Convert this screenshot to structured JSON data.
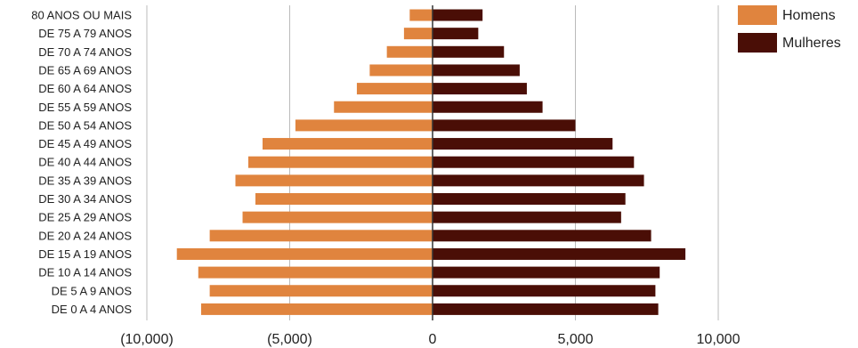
{
  "chart_data": {
    "type": "bar",
    "orientation": "horizontal",
    "layout": "population-pyramid",
    "categories": [
      "80 ANOS OU MAIS",
      "DE 75 A 79 ANOS",
      "DE 70 A 74 ANOS",
      "DE 65 A 69 ANOS",
      "DE 60 A 64 ANOS",
      "DE 55 A 59 ANOS",
      "DE 50 A 54 ANOS",
      "DE 45 A 49 ANOS",
      "DE 40 A 44 ANOS",
      "DE 35 A 39 ANOS",
      "DE 30 A 34 ANOS",
      "DE 25 A 29 ANOS",
      "DE 20 A 24 ANOS",
      "DE 15 A 19 ANOS",
      "DE 10 A 14 ANOS",
      "DE 5 A 9 ANOS",
      "DE 0 A 4 ANOS"
    ],
    "series": [
      {
        "name": "Homens",
        "color": "#E0843E",
        "values": [
          -800,
          -1000,
          -1600,
          -2200,
          -2650,
          -3450,
          -4800,
          -5950,
          -6450,
          -6900,
          -6200,
          -6650,
          -7800,
          -8950,
          -8200,
          -7800,
          -8100
        ]
      },
      {
        "name": "Mulheres",
        "color": "#4A0E06",
        "values": [
          1750,
          1600,
          2500,
          3050,
          3300,
          3850,
          5000,
          6300,
          7050,
          7400,
          6750,
          6600,
          7650,
          8850,
          7950,
          7800,
          7900
        ]
      }
    ],
    "x_ticks": [
      {
        "value": -10000,
        "label": "(10,000)"
      },
      {
        "value": -5000,
        "label": "(5,000)"
      },
      {
        "value": 0,
        "label": "0"
      },
      {
        "value": 5000,
        "label": "5,000"
      },
      {
        "value": 10000,
        "label": "10,000"
      }
    ],
    "xlim": [
      -10000,
      10000
    ],
    "title": "",
    "xlabel": "",
    "ylabel": "",
    "grid": "vertical",
    "legend_position": "top-right",
    "axis_color": "#333333",
    "grid_color": "#BBBBBB"
  }
}
